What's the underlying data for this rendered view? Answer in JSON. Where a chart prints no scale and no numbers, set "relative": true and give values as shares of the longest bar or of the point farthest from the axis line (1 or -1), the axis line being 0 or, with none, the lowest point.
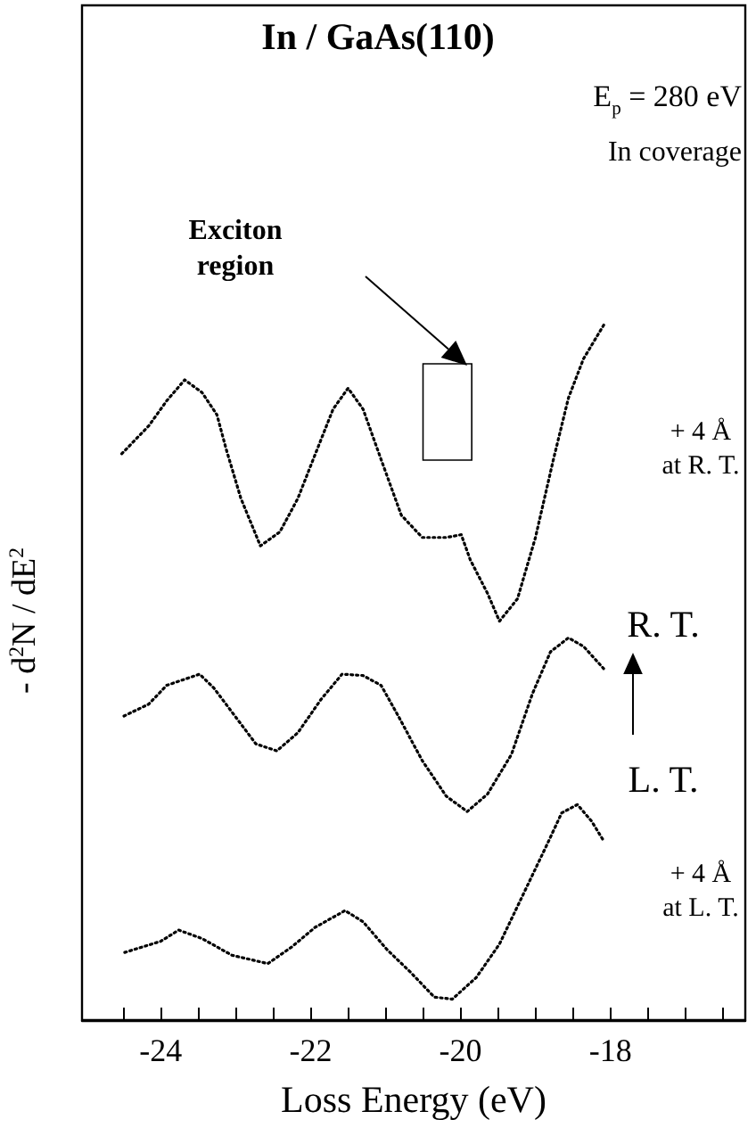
{
  "chart_data": {
    "type": "line",
    "title": "In / GaAs(110)",
    "xlabel": "Loss Energy (eV)",
    "ylabel": "- d$^{2}$N / dE$^{2}$",
    "relative": true,
    "line_style": "dotted",
    "marker": "none",
    "grid": false,
    "xlim": [
      -25.05,
      -16.2
    ],
    "xticks": [
      {
        "value": -24.5,
        "label": null
      },
      -24,
      {
        "value": -23.5,
        "label": null
      },
      {
        "value": -23,
        "label": null
      },
      {
        "value": -22.5,
        "label": null
      },
      -22,
      {
        "value": -21.5,
        "label": null
      },
      {
        "value": -21,
        "label": null
      },
      {
        "value": -20.5,
        "label": null
      },
      -20,
      {
        "value": -19.5,
        "label": null
      },
      {
        "value": -19,
        "label": null
      },
      {
        "value": -18.5,
        "label": null
      },
      -18,
      {
        "value": -17.5,
        "label": null
      },
      {
        "value": -17,
        "label": null
      },
      {
        "value": -16.5,
        "label": null
      }
    ],
    "series": [
      {
        "color": "#000000",
        "x": [
          -24.52,
          -24.16,
          -23.92,
          -23.68,
          -23.45,
          -23.25,
          -23.13,
          -22.93,
          -22.67,
          -22.41,
          -22.17,
          -21.98,
          -21.7,
          -21.5,
          -21.3,
          -21.06,
          -20.79,
          -20.51,
          -20.19,
          -19.99,
          -19.87,
          -19.64,
          -19.48,
          -19.24,
          -19.0,
          -18.76,
          -18.56,
          -18.36,
          -18.07
        ],
        "values": [
          0.812,
          0.852,
          0.888,
          0.918,
          0.9,
          0.868,
          0.82,
          0.748,
          0.68,
          0.7,
          0.748,
          0.8,
          0.876,
          0.906,
          0.876,
          0.804,
          0.724,
          0.692,
          0.692,
          0.696,
          0.66,
          0.612,
          0.572,
          0.604,
          0.692,
          0.804,
          0.892,
          0.948,
          1.0
        ]
      },
      {
        "color": "#000000",
        "x": [
          -24.49,
          -24.16,
          -23.92,
          -23.48,
          -23.29,
          -23.01,
          -22.73,
          -22.45,
          -22.17,
          -21.86,
          -21.58,
          -21.3,
          -21.06,
          -20.83,
          -20.51,
          -20.19,
          -19.91,
          -19.64,
          -19.32,
          -19.04,
          -18.8,
          -18.56,
          -18.36,
          -18.09
        ],
        "values": [
          0.436,
          0.453,
          0.48,
          0.496,
          0.476,
          0.436,
          0.396,
          0.386,
          0.412,
          0.46,
          0.496,
          0.494,
          0.48,
          0.436,
          0.372,
          0.321,
          0.299,
          0.324,
          0.381,
          0.468,
          0.528,
          0.548,
          0.536,
          0.504
        ]
      },
      {
        "color": "#000000",
        "x": [
          -24.48,
          -24.24,
          -24.0,
          -23.76,
          -23.45,
          -23.05,
          -22.57,
          -22.25,
          -21.94,
          -21.54,
          -21.3,
          -20.98,
          -20.67,
          -20.35,
          -20.11,
          -19.79,
          -19.48,
          -19.16,
          -18.84,
          -18.65,
          -18.44,
          -18.25,
          -18.09
        ],
        "values": [
          0.097,
          0.105,
          0.113,
          0.129,
          0.117,
          0.093,
          0.081,
          0.105,
          0.133,
          0.157,
          0.141,
          0.101,
          0.069,
          0.033,
          0.03,
          0.061,
          0.109,
          0.181,
          0.253,
          0.297,
          0.309,
          0.285,
          0.257
        ]
      }
    ],
    "bands": [
      {
        "axis": "x",
        "from": -20.5,
        "to": -19.85,
        "color": "#000000"
      }
    ],
    "annotations": [
      "E$_{p}$ = 280 eV",
      "In coverage",
      "+ 4 Å\nat R. T.",
      "R. T.",
      "L. T.",
      "+ 4 Å\nat L. T.",
      "Exciton\nregion"
    ]
  }
}
